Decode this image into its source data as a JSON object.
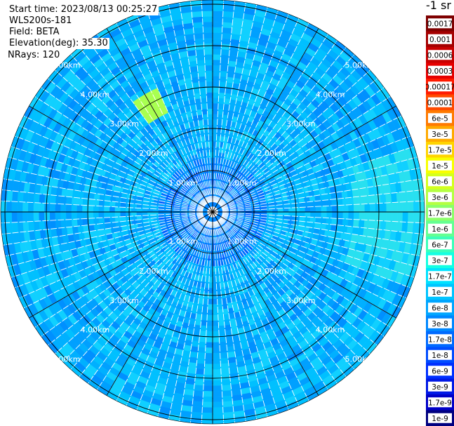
{
  "header": {
    "start_time": "Start time: 2023/08/13 00:25:27",
    "instrument": "WLS200s-181",
    "field": "Field: BETA",
    "elevation": "Elevation(deg): 35.30",
    "nrays": "NRays: 120"
  },
  "colorbar": {
    "units": "-1 sr",
    "levels": [
      {
        "label": "0.0017",
        "color": "#7f0000"
      },
      {
        "label": "0.001",
        "color": "#a50000"
      },
      {
        "label": "0.0006",
        "color": "#c80000"
      },
      {
        "label": "0.0003",
        "color": "#e60000"
      },
      {
        "label": "0.00017",
        "color": "#ff1a00"
      },
      {
        "label": "0.0001",
        "color": "#ff4b00"
      },
      {
        "label": "6e-5",
        "color": "#ff7a00"
      },
      {
        "label": "3e-5",
        "color": "#ffaa00"
      },
      {
        "label": "1.7e-5",
        "color": "#ffd400"
      },
      {
        "label": "1e-5",
        "color": "#f8ff00"
      },
      {
        "label": "6e-6",
        "color": "#d4ff1e"
      },
      {
        "label": "3e-6",
        "color": "#b4ff42"
      },
      {
        "label": "1.7e-6",
        "color": "#8cff6a"
      },
      {
        "label": "1e-6",
        "color": "#64ff92"
      },
      {
        "label": "6e-7",
        "color": "#3cffba"
      },
      {
        "label": "3e-7",
        "color": "#14ffe2"
      },
      {
        "label": "1.7e-7",
        "color": "#00e2ff"
      },
      {
        "label": "1e-7",
        "color": "#00c4ff"
      },
      {
        "label": "6e-8",
        "color": "#00a6ff"
      },
      {
        "label": "3e-8",
        "color": "#0088ff"
      },
      {
        "label": "1.7e-8",
        "color": "#006aff"
      },
      {
        "label": "1e-8",
        "color": "#004cff"
      },
      {
        "label": "6e-9",
        "color": "#0030ff"
      },
      {
        "label": "3e-9",
        "color": "#0018e6"
      },
      {
        "label": "1.7e-9",
        "color": "#0000c8"
      },
      {
        "label": "1e-9",
        "color": "#000080"
      }
    ]
  },
  "chart_data": {
    "type": "heatmap",
    "projection": "polar (PPI scan)",
    "field": "BETA",
    "n_rays": 120,
    "range_ring_labels": [
      "1.00km",
      "2.00km",
      "3.00km",
      "4.00km",
      "5.00km"
    ],
    "range_rings_km": [
      1,
      2,
      3,
      4,
      5
    ],
    "ring_label_directions": [
      "NW",
      "NE",
      "SW",
      "SE"
    ],
    "max_range_km": 5
  }
}
